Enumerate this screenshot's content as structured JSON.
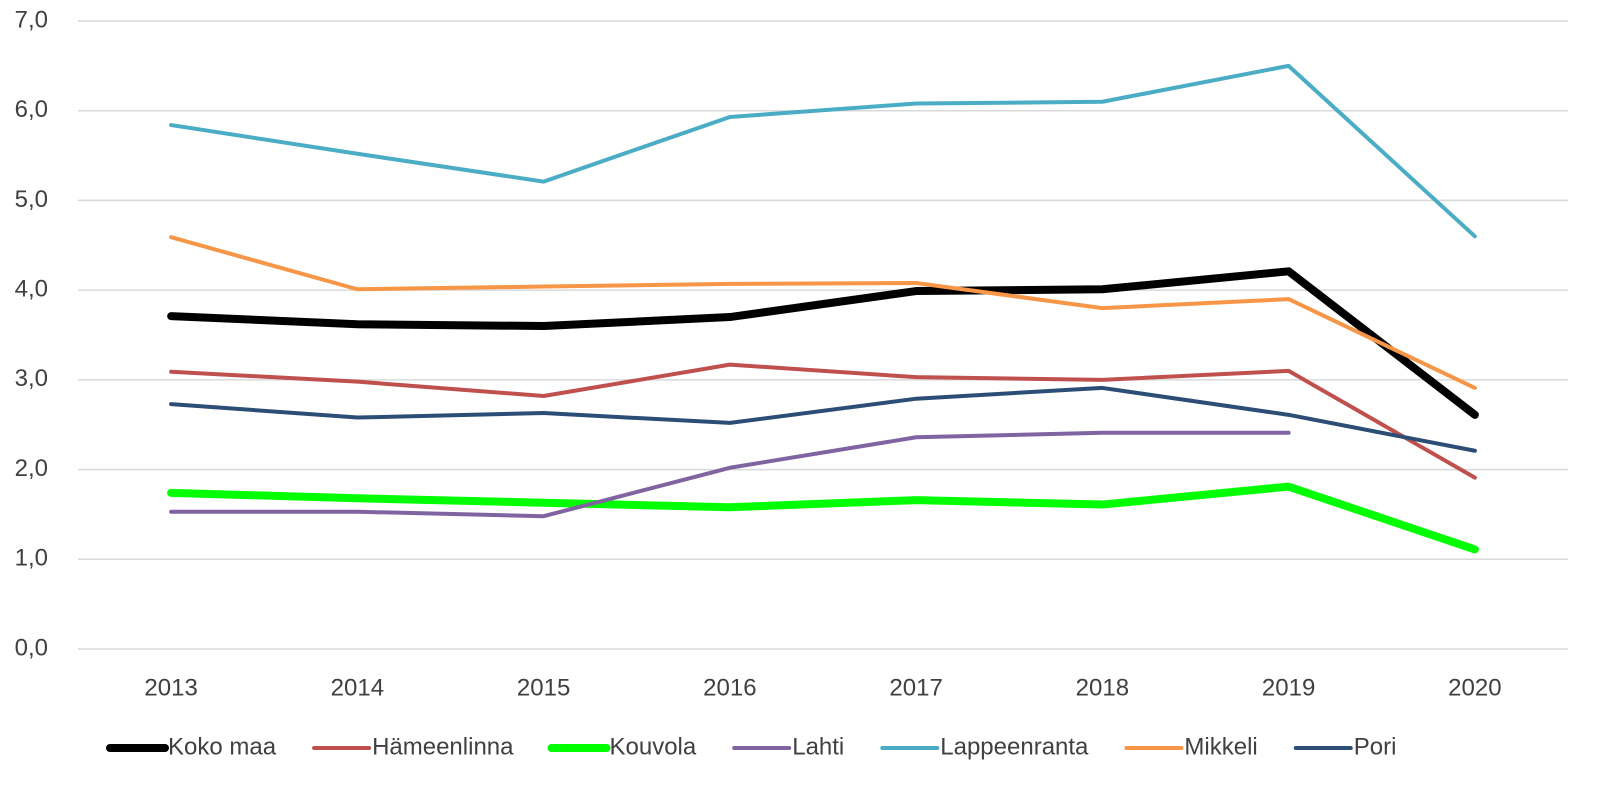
{
  "chart_data": {
    "type": "line",
    "categories": [
      "2013",
      "2014",
      "2015",
      "2016",
      "2017",
      "2018",
      "2019",
      "2020"
    ],
    "series": [
      {
        "name": "Koko maa",
        "color": "#000000",
        "width": 8,
        "values": [
          3.71,
          3.62,
          3.6,
          3.7,
          3.99,
          4.01,
          4.21,
          2.61
        ]
      },
      {
        "name": "Hämeenlinna",
        "color": "#c0504d",
        "width": 4,
        "values": [
          3.09,
          2.98,
          2.82,
          3.17,
          3.03,
          3.0,
          3.1,
          1.91
        ]
      },
      {
        "name": "Kouvola",
        "color": "#00ff00",
        "width": 8,
        "values": [
          1.74,
          1.68,
          1.63,
          1.58,
          1.66,
          1.61,
          1.81,
          1.11
        ]
      },
      {
        "name": "Lahti",
        "color": "#8064a2",
        "width": 4,
        "values": [
          1.53,
          1.53,
          1.48,
          2.02,
          2.36,
          2.41,
          2.41,
          null
        ]
      },
      {
        "name": "Lappeenranta",
        "color": "#4bacc6",
        "width": 4,
        "values": [
          5.84,
          5.52,
          5.21,
          5.93,
          6.08,
          6.1,
          6.5,
          4.6
        ]
      },
      {
        "name": "Mikkeli",
        "color": "#f79646",
        "width": 4,
        "values": [
          4.59,
          4.01,
          4.04,
          4.07,
          4.08,
          3.8,
          3.9,
          2.91
        ]
      },
      {
        "name": "Pori",
        "color": "#2c4d75",
        "width": 4,
        "values": [
          2.73,
          2.58,
          2.63,
          2.52,
          2.79,
          2.91,
          2.61,
          2.21
        ]
      }
    ],
    "ylim": [
      0,
      7
    ],
    "yticks": [
      {
        "value": 0,
        "label": "0,0"
      },
      {
        "value": 1,
        "label": "1,0"
      },
      {
        "value": 2,
        "label": "2,0"
      },
      {
        "value": 3,
        "label": "3,0"
      },
      {
        "value": 4,
        "label": "4,0"
      },
      {
        "value": 5,
        "label": "5,0"
      },
      {
        "value": 6,
        "label": "6,0"
      },
      {
        "value": 7,
        "label": "7,0"
      }
    ],
    "grid": true,
    "legend": "bottom"
  }
}
